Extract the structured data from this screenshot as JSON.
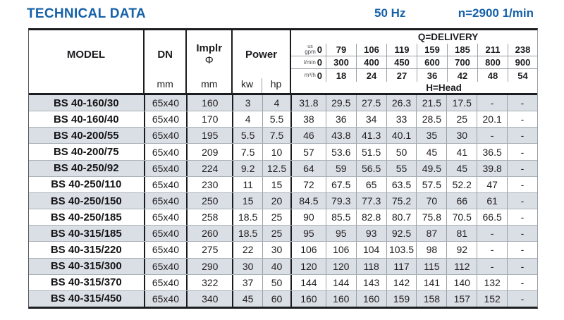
{
  "page": {
    "title": "TECHNICAL DATA",
    "frequency": "50 Hz",
    "speed": "n=2900 1/min"
  },
  "colors": {
    "accent_blue": "#1561a9",
    "alt_row_background": "#dadfe5"
  },
  "table": {
    "column_headers": {
      "model": "MODEL",
      "dn": "DN",
      "dn_unit": "mm",
      "impeller": "Implr",
      "impeller_symbol": "Φ",
      "impeller_unit": "mm",
      "power": "Power",
      "power_kw": "kw",
      "power_hp": "hp"
    },
    "delivery": {
      "label": "Q=DELIVERY",
      "head_label": "H=Head",
      "unit_rows": [
        {
          "unit_sup": "us",
          "unit": "gpm",
          "values": [
            "0",
            "79",
            "106",
            "119",
            "159",
            "185",
            "211",
            "238"
          ]
        },
        {
          "unit_sup": "",
          "unit": "l/min",
          "values": [
            "0",
            "300",
            "400",
            "450",
            "600",
            "700",
            "800",
            "900"
          ]
        },
        {
          "unit_sup": "",
          "unit": "m³/h",
          "values": [
            "0",
            "18",
            "24",
            "27",
            "36",
            "42",
            "48",
            "54"
          ]
        }
      ]
    },
    "rows": [
      {
        "model": "BS 40-160/30",
        "dn": "65x40",
        "impeller": "160",
        "kw": "3",
        "hp": "4",
        "head": [
          "31.8",
          "29.5",
          "27.5",
          "26.3",
          "21.5",
          "17.5",
          "-",
          "-"
        ]
      },
      {
        "model": "BS 40-160/40",
        "dn": "65x40",
        "impeller": "170",
        "kw": "4",
        "hp": "5.5",
        "head": [
          "38",
          "36",
          "34",
          "33",
          "28.5",
          "25",
          "20.1",
          "-"
        ]
      },
      {
        "model": "BS 40-200/55",
        "dn": "65x40",
        "impeller": "195",
        "kw": "5.5",
        "hp": "7.5",
        "head": [
          "46",
          "43.8",
          "41.3",
          "40.1",
          "35",
          "30",
          "-",
          "-"
        ]
      },
      {
        "model": "BS 40-200/75",
        "dn": "65x40",
        "impeller": "209",
        "kw": "7.5",
        "hp": "10",
        "head": [
          "57",
          "53.6",
          "51.5",
          "50",
          "45",
          "41",
          "36.5",
          "-"
        ]
      },
      {
        "model": "BS 40-250/92",
        "dn": "65x40",
        "impeller": "224",
        "kw": "9.2",
        "hp": "12.5",
        "head": [
          "64",
          "59",
          "56.5",
          "55",
          "49.5",
          "45",
          "39.8",
          "-"
        ]
      },
      {
        "model": "BS 40-250/110",
        "dn": "65x40",
        "impeller": "230",
        "kw": "11",
        "hp": "15",
        "head": [
          "72",
          "67.5",
          "65",
          "63.5",
          "57.5",
          "52.2",
          "47",
          "-"
        ]
      },
      {
        "model": "BS 40-250/150",
        "dn": "65x40",
        "impeller": "250",
        "kw": "15",
        "hp": "20",
        "head": [
          "84.5",
          "79.3",
          "77.3",
          "75.2",
          "70",
          "66",
          "61",
          "-"
        ]
      },
      {
        "model": "BS 40-250/185",
        "dn": "65x40",
        "impeller": "258",
        "kw": "18.5",
        "hp": "25",
        "head": [
          "90",
          "85.5",
          "82.8",
          "80.7",
          "75.8",
          "70.5",
          "66.5",
          "-"
        ]
      },
      {
        "model": "BS 40-315/185",
        "dn": "65x40",
        "impeller": "260",
        "kw": "18.5",
        "hp": "25",
        "head": [
          "95",
          "95",
          "93",
          "92.5",
          "87",
          "81",
          "-",
          "-"
        ]
      },
      {
        "model": "BS 40-315/220",
        "dn": "65x40",
        "impeller": "275",
        "kw": "22",
        "hp": "30",
        "head": [
          "106",
          "106",
          "104",
          "103.5",
          "98",
          "92",
          "-",
          "-"
        ]
      },
      {
        "model": "BS 40-315/300",
        "dn": "65x40",
        "impeller": "290",
        "kw": "30",
        "hp": "40",
        "head": [
          "120",
          "120",
          "118",
          "117",
          "115",
          "112",
          "-",
          "-"
        ]
      },
      {
        "model": "BS 40-315/370",
        "dn": "65x40",
        "impeller": "322",
        "kw": "37",
        "hp": "50",
        "head": [
          "144",
          "144",
          "143",
          "142",
          "141",
          "140",
          "132",
          "-"
        ]
      },
      {
        "model": "BS 40-315/450",
        "dn": "65x40",
        "impeller": "340",
        "kw": "45",
        "hp": "60",
        "head": [
          "160",
          "160",
          "160",
          "159",
          "158",
          "157",
          "152",
          "-"
        ]
      }
    ]
  }
}
